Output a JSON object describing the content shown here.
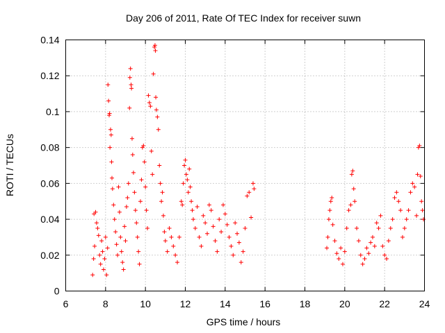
{
  "chart_data": {
    "type": "scatter",
    "title": "Day 206 of 2011, Rate Of TEC Index for receiver suwn",
    "xlabel": "GPS time / hours",
    "ylabel": "ROTI / TECUs",
    "xlim": [
      6,
      24
    ],
    "ylim": [
      0,
      0.14
    ],
    "xticks": [
      6,
      8,
      10,
      12,
      14,
      16,
      18,
      20,
      22,
      24
    ],
    "yticks": [
      0,
      0.02,
      0.04,
      0.06,
      0.08,
      0.1,
      0.12,
      0.14
    ],
    "ytick_labels": [
      "0",
      "0.02",
      "0.04",
      "0.06",
      "0.08",
      "0.1",
      "0.12",
      "0.14"
    ],
    "grid": true,
    "marker": "+",
    "color": "#ff0000",
    "series": [
      {
        "points": [
          [
            7.35,
            0.009
          ],
          [
            7.4,
            0.018
          ],
          [
            7.42,
            0.043
          ],
          [
            7.45,
            0.025
          ],
          [
            7.5,
            0.044
          ],
          [
            7.55,
            0.038
          ],
          [
            7.6,
            0.035
          ],
          [
            7.65,
            0.031
          ],
          [
            7.7,
            0.02
          ],
          [
            7.75,
            0.015
          ],
          [
            7.8,
            0.028
          ],
          [
            7.85,
            0.022
          ],
          [
            7.9,
            0.012
          ],
          [
            7.95,
            0.018
          ],
          [
            8.0,
            0.03
          ],
          [
            8.05,
            0.009
          ],
          [
            8.1,
            0.024
          ],
          [
            8.12,
            0.115
          ],
          [
            8.15,
            0.106
          ],
          [
            8.18,
            0.098
          ],
          [
            8.2,
            0.099
          ],
          [
            8.22,
            0.08
          ],
          [
            8.25,
            0.09
          ],
          [
            8.28,
            0.087
          ],
          [
            8.3,
            0.072
          ],
          [
            8.32,
            0.063
          ],
          [
            8.35,
            0.057
          ],
          [
            8.4,
            0.048
          ],
          [
            8.45,
            0.04
          ],
          [
            8.5,
            0.033
          ],
          [
            8.55,
            0.026
          ],
          [
            8.6,
            0.02
          ],
          [
            8.65,
            0.058
          ],
          [
            8.7,
            0.044
          ],
          [
            8.75,
            0.03
          ],
          [
            8.8,
            0.022
          ],
          [
            8.85,
            0.016
          ],
          [
            8.9,
            0.012
          ],
          [
            8.95,
            0.036
          ],
          [
            9.0,
            0.028
          ],
          [
            9.05,
            0.047
          ],
          [
            9.1,
            0.052
          ],
          [
            9.15,
            0.06
          ],
          [
            9.2,
            0.102
          ],
          [
            9.22,
            0.119
          ],
          [
            9.25,
            0.124
          ],
          [
            9.28,
            0.115
          ],
          [
            9.3,
            0.113
          ],
          [
            9.33,
            0.085
          ],
          [
            9.36,
            0.076
          ],
          [
            9.4,
            0.066
          ],
          [
            9.45,
            0.055
          ],
          [
            9.5,
            0.045
          ],
          [
            9.55,
            0.038
          ],
          [
            9.6,
            0.03
          ],
          [
            9.65,
            0.022
          ],
          [
            9.7,
            0.015
          ],
          [
            9.75,
            0.05
          ],
          [
            9.8,
            0.062
          ],
          [
            9.85,
            0.08
          ],
          [
            9.9,
            0.081
          ],
          [
            9.95,
            0.072
          ],
          [
            10.0,
            0.058
          ],
          [
            10.05,
            0.045
          ],
          [
            10.1,
            0.035
          ],
          [
            10.15,
            0.109
          ],
          [
            10.2,
            0.105
          ],
          [
            10.25,
            0.103
          ],
          [
            10.3,
            0.078
          ],
          [
            10.35,
            0.065
          ],
          [
            10.4,
            0.121
          ],
          [
            10.45,
            0.136
          ],
          [
            10.48,
            0.137
          ],
          [
            10.5,
            0.134
          ],
          [
            10.52,
            0.108
          ],
          [
            10.55,
            0.101
          ],
          [
            10.6,
            0.097
          ],
          [
            10.65,
            0.09
          ],
          [
            10.7,
            0.07
          ],
          [
            10.75,
            0.06
          ],
          [
            10.8,
            0.05
          ],
          [
            10.85,
            0.055
          ],
          [
            10.9,
            0.042
          ],
          [
            10.95,
            0.033
          ],
          [
            11.0,
            0.028
          ],
          [
            11.1,
            0.022
          ],
          [
            11.2,
            0.035
          ],
          [
            11.3,
            0.03
          ],
          [
            11.4,
            0.025
          ],
          [
            11.5,
            0.02
          ],
          [
            11.6,
            0.016
          ],
          [
            11.7,
            0.03
          ],
          [
            11.8,
            0.05
          ],
          [
            11.85,
            0.048
          ],
          [
            11.9,
            0.06
          ],
          [
            11.95,
            0.07
          ],
          [
            12.0,
            0.073
          ],
          [
            12.05,
            0.065
          ],
          [
            12.1,
            0.062
          ],
          [
            12.15,
            0.055
          ],
          [
            12.2,
            0.068
          ],
          [
            12.25,
            0.058
          ],
          [
            12.3,
            0.05
          ],
          [
            12.35,
            0.045
          ],
          [
            12.4,
            0.04
          ],
          [
            12.5,
            0.035
          ],
          [
            12.6,
            0.047
          ],
          [
            12.7,
            0.03
          ],
          [
            12.8,
            0.025
          ],
          [
            12.9,
            0.042
          ],
          [
            13.0,
            0.038
          ],
          [
            13.1,
            0.032
          ],
          [
            13.2,
            0.048
          ],
          [
            13.3,
            0.045
          ],
          [
            13.4,
            0.036
          ],
          [
            13.5,
            0.028
          ],
          [
            13.6,
            0.022
          ],
          [
            13.7,
            0.04
          ],
          [
            13.8,
            0.033
          ],
          [
            13.9,
            0.048
          ],
          [
            14.0,
            0.043
          ],
          [
            14.1,
            0.037
          ],
          [
            14.2,
            0.03
          ],
          [
            14.3,
            0.025
          ],
          [
            14.4,
            0.02
          ],
          [
            14.5,
            0.038
          ],
          [
            14.6,
            0.032
          ],
          [
            14.7,
            0.027
          ],
          [
            14.8,
            0.016
          ],
          [
            14.9,
            0.022
          ],
          [
            15.0,
            0.035
          ],
          [
            15.1,
            0.053
          ],
          [
            15.2,
            0.055
          ],
          [
            15.3,
            0.041
          ],
          [
            15.4,
            0.06
          ],
          [
            15.45,
            0.057
          ],
          [
            19.1,
            0.024
          ],
          [
            19.15,
            0.03
          ],
          [
            19.2,
            0.04
          ],
          [
            19.25,
            0.045
          ],
          [
            19.3,
            0.05
          ],
          [
            19.35,
            0.052
          ],
          [
            19.4,
            0.037
          ],
          [
            19.5,
            0.028
          ],
          [
            19.6,
            0.021
          ],
          [
            19.7,
            0.018
          ],
          [
            19.8,
            0.024
          ],
          [
            19.9,
            0.015
          ],
          [
            20.0,
            0.022
          ],
          [
            20.1,
            0.035
          ],
          [
            20.2,
            0.045
          ],
          [
            20.3,
            0.048
          ],
          [
            20.35,
            0.065
          ],
          [
            20.4,
            0.067
          ],
          [
            20.45,
            0.057
          ],
          [
            20.5,
            0.05
          ],
          [
            20.6,
            0.035
          ],
          [
            20.7,
            0.028
          ],
          [
            20.8,
            0.02
          ],
          [
            20.9,
            0.015
          ],
          [
            21.0,
            0.018
          ],
          [
            21.1,
            0.024
          ],
          [
            21.2,
            0.021
          ],
          [
            21.3,
            0.027
          ],
          [
            21.4,
            0.03
          ],
          [
            21.5,
            0.025
          ],
          [
            21.6,
            0.038
          ],
          [
            21.7,
            0.035
          ],
          [
            21.8,
            0.042
          ],
          [
            21.9,
            0.025
          ],
          [
            22.0,
            0.02
          ],
          [
            22.1,
            0.018
          ],
          [
            22.2,
            0.028
          ],
          [
            22.3,
            0.035
          ],
          [
            22.4,
            0.04
          ],
          [
            22.5,
            0.052
          ],
          [
            22.6,
            0.055
          ],
          [
            22.7,
            0.05
          ],
          [
            22.8,
            0.045
          ],
          [
            22.9,
            0.03
          ],
          [
            23.0,
            0.035
          ],
          [
            23.1,
            0.04
          ],
          [
            23.2,
            0.045
          ],
          [
            23.3,
            0.055
          ],
          [
            23.4,
            0.06
          ],
          [
            23.5,
            0.058
          ],
          [
            23.6,
            0.042
          ],
          [
            23.65,
            0.065
          ],
          [
            23.7,
            0.08
          ],
          [
            23.75,
            0.081
          ],
          [
            23.8,
            0.064
          ],
          [
            23.85,
            0.05
          ],
          [
            23.9,
            0.045
          ],
          [
            23.95,
            0.04
          ]
        ]
      }
    ]
  }
}
